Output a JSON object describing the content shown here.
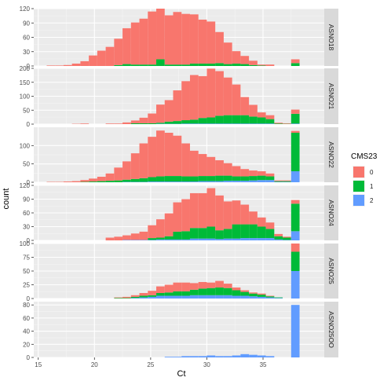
{
  "chart_data": {
    "type": "bar",
    "stacked": true,
    "faceted": true,
    "xlabel": "Ct",
    "ylabel": "count",
    "x_ticks": [
      15,
      20,
      25,
      30,
      35
    ],
    "xlim": [
      14.6,
      39.4
    ],
    "bin_width": 0.75,
    "bin_start": 15.75,
    "bin_count": 30,
    "legend": {
      "title": "CMS23",
      "position": "right",
      "entries": [
        {
          "label": "0",
          "color": "#F8766D"
        },
        {
          "label": "1",
          "color": "#00BA38"
        },
        {
          "label": "2",
          "color": "#619CFF"
        }
      ]
    },
    "panels": [
      {
        "label": "ASNO18",
        "ylim": [
          0,
          120
        ],
        "y_ticks": [
          0,
          30,
          60,
          90,
          120
        ],
        "series": [
          {
            "name": "0",
            "values": [
              1,
              1,
              2,
              5,
              10,
              22,
              32,
              40,
              55,
              75,
              88,
              96,
              111,
              116,
              103,
              110,
              106,
              103,
              92,
              88,
              65,
              45,
              26,
              17,
              9,
              2,
              3,
              0,
              0,
              8
            ]
          },
          {
            "name": "1",
            "values": [
              0,
              0,
              0,
              0,
              0,
              0,
              0,
              0,
              2,
              4,
              3,
              3,
              3,
              14,
              3,
              3,
              3,
              5,
              5,
              5,
              6,
              4,
              5,
              4,
              2,
              1,
              0,
              0,
              0,
              6
            ]
          },
          {
            "name": "2",
            "values": [
              0,
              0,
              0,
              0,
              0,
              0,
              0,
              0,
              0,
              0,
              0,
              0,
              0,
              0,
              0,
              0,
              0,
              0,
              0,
              0,
              0,
              0,
              0,
              0,
              0,
              0,
              0,
              0,
              0,
              0
            ]
          }
        ]
      },
      {
        "label": "ASNO21",
        "ylim": [
          0,
          200
        ],
        "y_ticks": [
          0,
          50,
          100,
          150,
          200
        ],
        "series": [
          {
            "name": "0",
            "values": [
              0,
              0,
              0,
              1,
              2,
              0,
              0,
              2,
              2,
              6,
              10,
              20,
              35,
              65,
              77,
              110,
              140,
              160,
              150,
              175,
              160,
              135,
              110,
              65,
              42,
              18,
              14,
              3,
              2,
              15
            ]
          },
          {
            "name": "1",
            "values": [
              0,
              0,
              0,
              0,
              0,
              0,
              0,
              0,
              0,
              0,
              3,
              3,
              3,
              4,
              8,
              10,
              12,
              14,
              20,
              22,
              28,
              30,
              30,
              30,
              25,
              22,
              16,
              2,
              1,
              35
            ]
          },
          {
            "name": "2",
            "values": [
              0,
              0,
              0,
              0,
              0,
              0,
              0,
              0,
              0,
              0,
              0,
              0,
              0,
              1,
              1,
              1,
              2,
              2,
              2,
              2,
              2,
              2,
              2,
              2,
              2,
              2,
              2,
              0,
              0,
              2
            ]
          }
        ]
      },
      {
        "label": "ASNO22",
        "ylim": [
          0,
          150
        ],
        "y_ticks": [
          0,
          50,
          100
        ],
        "series": [
          {
            "name": "0",
            "values": [
              1,
              1,
              2,
              3,
              5,
              8,
              12,
              20,
              35,
              50,
              70,
              95,
              110,
              125,
              118,
              110,
              90,
              70,
              60,
              52,
              42,
              34,
              28,
              20,
              15,
              12,
              8,
              2,
              2,
              5
            ]
          },
          {
            "name": "1",
            "values": [
              0,
              0,
              0,
              0,
              1,
              2,
              3,
              4,
              5,
              6,
              8,
              10,
              12,
              14,
              15,
              15,
              14,
              14,
              14,
              14,
              15,
              14,
              12,
              12,
              12,
              12,
              10,
              2,
              2,
              105
            ]
          },
          {
            "name": "2",
            "values": [
              0,
              0,
              0,
              0,
              0,
              0,
              0,
              0,
              0,
              1,
              1,
              1,
              2,
              2,
              2,
              2,
              2,
              2,
              3,
              3,
              3,
              4,
              4,
              4,
              5,
              6,
              6,
              1,
              1,
              30
            ]
          }
        ]
      },
      {
        "label": "ASNO24",
        "ylim": [
          0,
          120
        ],
        "y_ticks": [
          0,
          30,
          60,
          90,
          120
        ],
        "series": [
          {
            "name": "0",
            "values": [
              0,
              0,
              0,
              0,
              0,
              0,
              0,
              6,
              8,
              10,
              14,
              18,
              28,
              40,
              50,
              64,
              70,
              76,
              76,
              84,
              76,
              60,
              52,
              43,
              28,
              20,
              14,
              5,
              2,
              8
            ]
          },
          {
            "name": "1",
            "values": [
              0,
              0,
              0,
              0,
              0,
              0,
              0,
              0,
              0,
              0,
              0,
              0,
              4,
              4,
              7,
              17,
              18,
              23,
              23,
              26,
              19,
              21,
              31,
              30,
              30,
              25,
              20,
              7,
              5,
              60
            ]
          },
          {
            "name": "2",
            "values": [
              0,
              0,
              0,
              0,
              0,
              0,
              0,
              0,
              0,
              1,
              1,
              1,
              1,
              2,
              2,
              2,
              2,
              4,
              4,
              4,
              3,
              4,
              4,
              5,
              5,
              5,
              5,
              2,
              1,
              20
            ]
          }
        ]
      },
      {
        "label": "ASNO25",
        "ylim": [
          0,
          100
        ],
        "y_ticks": [
          0,
          25,
          50,
          75,
          100
        ],
        "series": [
          {
            "name": "0",
            "values": [
              0,
              0,
              0,
              0,
              0,
              0,
              0,
              0,
              1,
              2,
              3,
              5,
              8,
              12,
              14,
              16,
              16,
              12,
              12,
              10,
              12,
              8,
              5,
              3,
              2,
              2,
              1,
              0,
              0,
              15
            ]
          },
          {
            "name": "1",
            "values": [
              0,
              0,
              0,
              0,
              0,
              0,
              0,
              0,
              1,
              1,
              2,
              3,
              3,
              5,
              6,
              8,
              8,
              10,
              12,
              13,
              14,
              13,
              10,
              7,
              5,
              4,
              2,
              1,
              0,
              35
            ]
          },
          {
            "name": "2",
            "values": [
              0,
              0,
              0,
              0,
              0,
              0,
              0,
              0,
              0,
              0,
              1,
              2,
              3,
              5,
              5,
              5,
              5,
              6,
              6,
              6,
              6,
              6,
              5,
              5,
              4,
              3,
              2,
              1,
              0,
              50
            ]
          }
        ]
      },
      {
        "label": "ASNO25OO",
        "ylim": [
          0,
          85
        ],
        "y_ticks": [
          0,
          20,
          40,
          60,
          80
        ],
        "series": [
          {
            "name": "0",
            "values": [
              0,
              0,
              0,
              0,
              0,
              0,
              0,
              0,
              0,
              0,
              0,
              0,
              0,
              0,
              0,
              0,
              0,
              0,
              0,
              0,
              0,
              0,
              0,
              0,
              0,
              0,
              0,
              0,
              0,
              0
            ]
          },
          {
            "name": "1",
            "values": [
              0,
              0,
              0,
              0,
              0,
              0,
              0,
              0,
              0,
              0,
              0,
              0,
              0,
              0,
              0,
              0,
              0,
              0,
              0,
              0,
              0,
              0,
              0,
              0,
              0,
              0,
              0,
              0,
              0,
              0
            ]
          },
          {
            "name": "2",
            "values": [
              0,
              0,
              0,
              0,
              0,
              0,
              0,
              0,
              0,
              0,
              0,
              0,
              0,
              0,
              1,
              1,
              2,
              2,
              2,
              3,
              2,
              2,
              3,
              5,
              4,
              3,
              2,
              0,
              0,
              80
            ]
          }
        ]
      }
    ]
  }
}
